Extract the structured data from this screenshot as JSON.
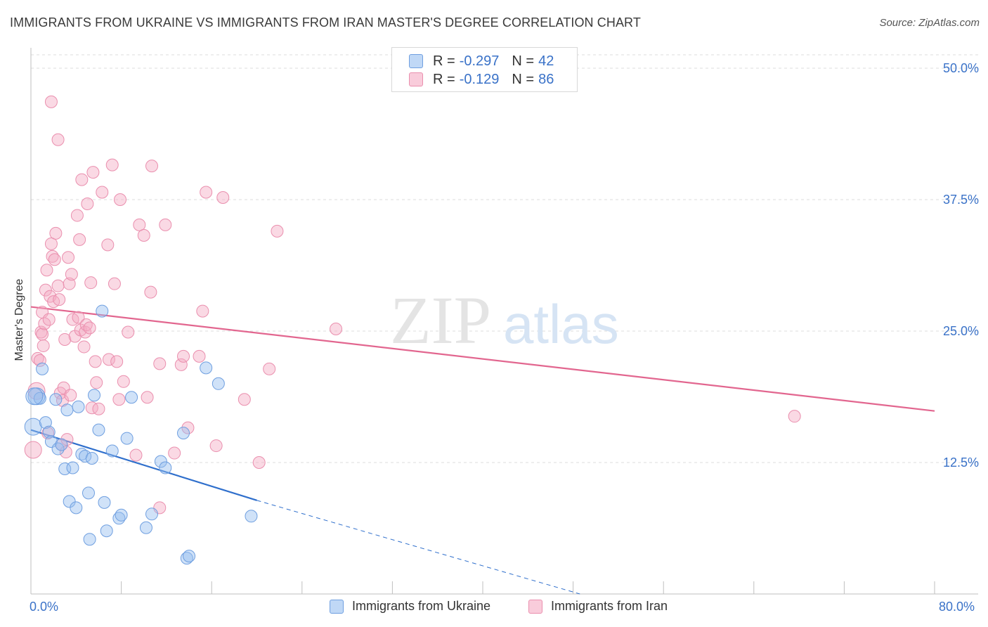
{
  "title": "IMMIGRANTS FROM UKRAINE VS IMMIGRANTS FROM IRAN MASTER'S DEGREE CORRELATION CHART",
  "source": "Source: ZipAtlas.com",
  "watermark": {
    "zip": "ZIP",
    "atlas": "atlas"
  },
  "colors": {
    "ukraine": "#6f9fe0",
    "ukraine_fill": "rgba(150,190,240,0.45)",
    "ukraine_line": "#2f6fcc",
    "iran": "#ea8fae",
    "iran_fill": "rgba(245,170,195,0.45)",
    "iran_line": "#e2668f",
    "axis_label": "#3a72c8",
    "grid": "#dcdcdc"
  },
  "legend": {
    "rows": [
      {
        "r_label": "R =",
        "r_value": "-0.297",
        "n_label": "N =",
        "n_value": "42"
      },
      {
        "r_label": "R =",
        "r_value": "-0.129",
        "n_label": "N =",
        "n_value": "86"
      }
    ]
  },
  "chart_data": {
    "type": "scatter",
    "title": "IMMIGRANTS FROM UKRAINE VS IMMIGRANTS FROM IRAN MASTER'S DEGREE CORRELATION CHART",
    "xlabel": "",
    "ylabel": "Master's Degree",
    "xlim": [
      0,
      80
    ],
    "ylim": [
      0,
      50
    ],
    "x_tick_labels": [
      "0.0%",
      "80.0%"
    ],
    "y_ticks": [
      12.5,
      25.0,
      37.5,
      50.0
    ],
    "y_tick_labels": [
      "12.5%",
      "25.0%",
      "37.5%",
      "50.0%"
    ],
    "grid": true,
    "series": [
      {
        "name": "Immigrants from Ukraine",
        "r": -0.297,
        "n": 42,
        "trend": {
          "x0": 0,
          "y0": 15.6,
          "x1": 20,
          "y1": 8.9,
          "dash_to_x": 48.6,
          "dash_to_y": 0
        },
        "points": [
          [
            0.2,
            15.9
          ],
          [
            0.5,
            18.8
          ],
          [
            0.8,
            18.6
          ],
          [
            1.0,
            21.4
          ],
          [
            1.3,
            16.3
          ],
          [
            1.6,
            15.4
          ],
          [
            1.8,
            14.5
          ],
          [
            2.2,
            18.5
          ],
          [
            2.4,
            13.8
          ],
          [
            2.7,
            14.2
          ],
          [
            3.0,
            11.9
          ],
          [
            3.2,
            17.5
          ],
          [
            3.4,
            8.8
          ],
          [
            3.7,
            12.0
          ],
          [
            4.0,
            8.2
          ],
          [
            4.2,
            17.8
          ],
          [
            4.5,
            13.3
          ],
          [
            4.8,
            13.1
          ],
          [
            5.1,
            9.6
          ],
          [
            5.2,
            5.2
          ],
          [
            5.4,
            12.9
          ],
          [
            5.6,
            18.9
          ],
          [
            6.0,
            15.6
          ],
          [
            6.3,
            26.9
          ],
          [
            6.5,
            8.7
          ],
          [
            6.7,
            6.0
          ],
          [
            7.2,
            13.6
          ],
          [
            7.8,
            7.2
          ],
          [
            8.0,
            7.5
          ],
          [
            8.5,
            14.8
          ],
          [
            8.9,
            18.7
          ],
          [
            10.2,
            6.3
          ],
          [
            10.7,
            7.6
          ],
          [
            11.5,
            12.6
          ],
          [
            11.9,
            12.0
          ],
          [
            13.8,
            3.4
          ],
          [
            14.0,
            3.6
          ],
          [
            13.5,
            15.3
          ],
          [
            15.5,
            21.5
          ],
          [
            16.6,
            20.0
          ],
          [
            19.5,
            7.4
          ],
          [
            0.3,
            18.8
          ]
        ]
      },
      {
        "name": "Immigrants from Iran",
        "r": -0.129,
        "n": 86,
        "trend": {
          "x0": 0,
          "y0": 27.3,
          "x1": 80,
          "y1": 17.4
        },
        "points": [
          [
            0.2,
            13.7
          ],
          [
            0.5,
            19.3
          ],
          [
            0.6,
            22.4
          ],
          [
            0.8,
            22.2
          ],
          [
            0.9,
            24.9
          ],
          [
            1.0,
            24.7
          ],
          [
            1.0,
            26.8
          ],
          [
            1.1,
            23.6
          ],
          [
            1.2,
            25.7
          ],
          [
            1.3,
            28.9
          ],
          [
            1.4,
            30.8
          ],
          [
            1.5,
            15.3
          ],
          [
            1.6,
            26.1
          ],
          [
            1.7,
            28.3
          ],
          [
            1.8,
            33.3
          ],
          [
            1.9,
            32.1
          ],
          [
            2.0,
            27.8
          ],
          [
            2.1,
            31.8
          ],
          [
            2.2,
            34.3
          ],
          [
            2.4,
            29.3
          ],
          [
            2.5,
            28.0
          ],
          [
            2.6,
            19.1
          ],
          [
            2.7,
            14.2
          ],
          [
            2.8,
            18.4
          ],
          [
            2.9,
            19.6
          ],
          [
            3.0,
            24.2
          ],
          [
            3.1,
            13.5
          ],
          [
            3.2,
            14.7
          ],
          [
            3.3,
            32.0
          ],
          [
            3.4,
            29.5
          ],
          [
            3.5,
            18.9
          ],
          [
            3.6,
            30.4
          ],
          [
            3.7,
            26.1
          ],
          [
            3.9,
            24.5
          ],
          [
            4.1,
            36.0
          ],
          [
            4.2,
            26.3
          ],
          [
            4.3,
            33.7
          ],
          [
            4.4,
            25.1
          ],
          [
            4.5,
            39.4
          ],
          [
            4.7,
            23.5
          ],
          [
            4.8,
            24.9
          ],
          [
            4.9,
            25.6
          ],
          [
            5.0,
            37.1
          ],
          [
            5.2,
            25.3
          ],
          [
            5.3,
            29.6
          ],
          [
            5.4,
            17.7
          ],
          [
            5.5,
            40.1
          ],
          [
            5.7,
            22.1
          ],
          [
            5.8,
            20.1
          ],
          [
            6.0,
            17.6
          ],
          [
            6.3,
            38.2
          ],
          [
            6.8,
            33.2
          ],
          [
            6.9,
            22.3
          ],
          [
            7.2,
            40.8
          ],
          [
            7.4,
            29.5
          ],
          [
            7.6,
            22.1
          ],
          [
            7.8,
            18.5
          ],
          [
            7.9,
            37.5
          ],
          [
            8.2,
            20.2
          ],
          [
            8.6,
            24.9
          ],
          [
            9.3,
            13.2
          ],
          [
            9.6,
            35.1
          ],
          [
            10.0,
            34.1
          ],
          [
            10.3,
            18.7
          ],
          [
            10.6,
            28.7
          ],
          [
            10.7,
            40.7
          ],
          [
            11.4,
            8.2
          ],
          [
            11.4,
            21.9
          ],
          [
            11.9,
            35.1
          ],
          [
            12.7,
            13.4
          ],
          [
            13.3,
            21.8
          ],
          [
            13.5,
            22.6
          ],
          [
            13.9,
            15.8
          ],
          [
            14.9,
            22.6
          ],
          [
            15.2,
            26.9
          ],
          [
            15.5,
            38.2
          ],
          [
            16.4,
            14.1
          ],
          [
            17.0,
            37.7
          ],
          [
            18.9,
            18.5
          ],
          [
            20.2,
            12.5
          ],
          [
            21.1,
            21.4
          ],
          [
            21.8,
            34.5
          ],
          [
            27.0,
            25.2
          ],
          [
            67.6,
            16.9
          ],
          [
            1.8,
            46.8
          ],
          [
            2.4,
            43.2
          ]
        ]
      }
    ]
  },
  "bottom_legend": {
    "ukraine_label": "Immigrants from Ukraine",
    "iran_label": "Immigrants from Iran"
  }
}
